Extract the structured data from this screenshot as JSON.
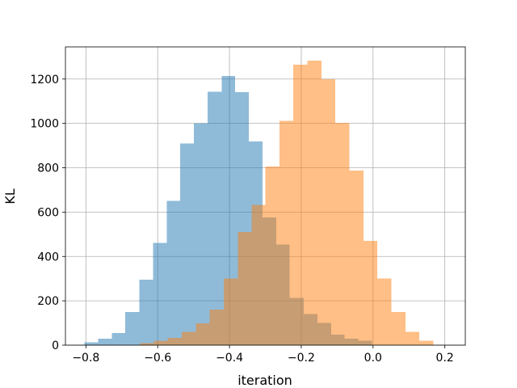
{
  "chart_data": {
    "type": "histogram",
    "title": "",
    "xlabel": "iteration",
    "ylabel": "KL",
    "xlim": [
      -0.857,
      0.257
    ],
    "ylim": [
      0,
      1345
    ],
    "grid": true,
    "xticks": [
      -0.8,
      -0.6,
      -0.4,
      -0.2,
      0.0,
      0.2
    ],
    "xtick_labels": [
      "−0.8",
      "−0.6",
      "−0.4",
      "−0.2",
      "0.0",
      "0.2"
    ],
    "yticks": [
      0,
      200,
      400,
      600,
      800,
      1000,
      1200
    ],
    "ytick_labels": [
      "0",
      "200",
      "400",
      "600",
      "800",
      "1000",
      "1200"
    ],
    "series": [
      {
        "color": "#1f77b4",
        "opacity": 0.5,
        "bins": [
          [
            -0.804,
            -0.766,
            12
          ],
          [
            -0.766,
            -0.728,
            30
          ],
          [
            -0.728,
            -0.69,
            55
          ],
          [
            -0.69,
            -0.651,
            150
          ],
          [
            -0.651,
            -0.613,
            295
          ],
          [
            -0.613,
            -0.575,
            462
          ],
          [
            -0.575,
            -0.537,
            650
          ],
          [
            -0.537,
            -0.499,
            910
          ],
          [
            -0.499,
            -0.461,
            1000
          ],
          [
            -0.461,
            -0.422,
            1143
          ],
          [
            -0.422,
            -0.384,
            1213
          ],
          [
            -0.384,
            -0.346,
            1140
          ],
          [
            -0.346,
            -0.308,
            918
          ],
          [
            -0.308,
            -0.27,
            575
          ],
          [
            -0.27,
            -0.232,
            453
          ],
          [
            -0.232,
            -0.193,
            213
          ],
          [
            -0.193,
            -0.155,
            140
          ],
          [
            -0.155,
            -0.117,
            100
          ],
          [
            -0.117,
            -0.079,
            48
          ],
          [
            -0.079,
            -0.041,
            30
          ],
          [
            -0.041,
            -0.003,
            20
          ]
        ]
      },
      {
        "color": "#ff7f0e",
        "opacity": 0.5,
        "bins": [
          [
            -0.65,
            -0.611,
            10
          ],
          [
            -0.611,
            -0.572,
            20
          ],
          [
            -0.572,
            -0.533,
            32
          ],
          [
            -0.533,
            -0.494,
            60
          ],
          [
            -0.494,
            -0.455,
            98
          ],
          [
            -0.455,
            -0.416,
            160
          ],
          [
            -0.416,
            -0.377,
            300
          ],
          [
            -0.377,
            -0.338,
            510
          ],
          [
            -0.338,
            -0.3,
            632
          ],
          [
            -0.3,
            -0.261,
            805
          ],
          [
            -0.261,
            -0.222,
            1012
          ],
          [
            -0.222,
            -0.183,
            1265
          ],
          [
            -0.183,
            -0.144,
            1283
          ],
          [
            -0.144,
            -0.105,
            1200
          ],
          [
            -0.105,
            -0.066,
            1003
          ],
          [
            -0.066,
            -0.027,
            788
          ],
          [
            -0.027,
            0.012,
            470
          ],
          [
            0.012,
            0.051,
            300
          ],
          [
            0.051,
            0.09,
            150
          ],
          [
            0.09,
            0.129,
            60
          ],
          [
            0.129,
            0.168,
            20
          ]
        ]
      }
    ]
  }
}
